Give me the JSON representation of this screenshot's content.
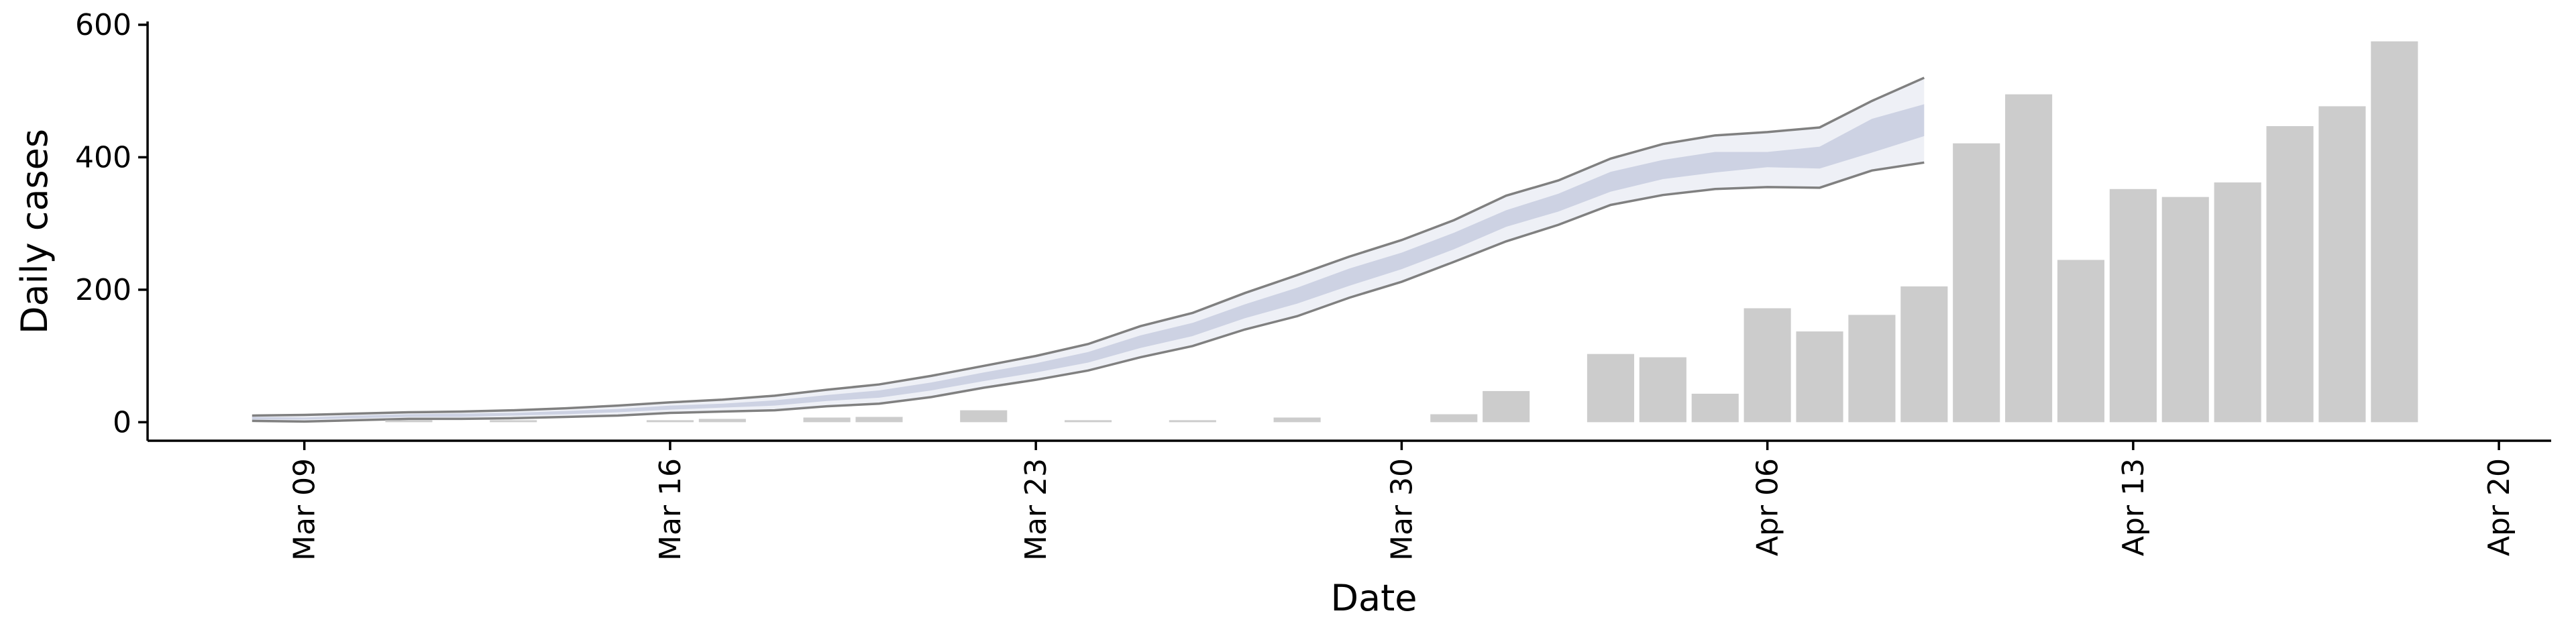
{
  "chart_data": {
    "type": "bar_band",
    "x_label": "Date",
    "y_label": "Daily cases",
    "x": [
      "Mar 08",
      "Mar 09",
      "Mar 10",
      "Mar 11",
      "Mar 12",
      "Mar 13",
      "Mar 14",
      "Mar 15",
      "Mar 16",
      "Mar 17",
      "Mar 18",
      "Mar 19",
      "Mar 20",
      "Mar 21",
      "Mar 22",
      "Mar 23",
      "Mar 24",
      "Mar 25",
      "Mar 26",
      "Mar 27",
      "Mar 28",
      "Mar 29",
      "Mar 30",
      "Mar 31",
      "Apr 01",
      "Apr 02",
      "Apr 03",
      "Apr 04",
      "Apr 05",
      "Apr 06",
      "Apr 07",
      "Apr 08",
      "Apr 09",
      "Apr 10",
      "Apr 11",
      "Apr 12",
      "Apr 13",
      "Apr 14",
      "Apr 15",
      "Apr 16",
      "Apr 17",
      "Apr 18"
    ],
    "values": [
      0,
      0,
      0,
      3,
      0,
      3,
      0,
      0,
      3,
      5,
      0,
      7,
      8,
      0,
      18,
      0,
      3,
      0,
      3,
      0,
      7,
      0,
      0,
      12,
      47,
      0,
      103,
      98,
      43,
      172,
      137,
      162,
      205,
      421,
      495,
      245,
      352,
      340,
      362,
      447,
      477,
      575
    ],
    "color": "#cccccc",
    "bands": [
      {
        "color": "#eef0f6",
        "edge_color": "#808080",
        "upper": [
          10,
          11,
          13,
          15,
          16,
          18,
          21,
          25,
          30,
          34,
          40,
          49,
          57,
          70,
          85,
          100,
          118,
          145,
          165,
          195,
          222,
          250,
          275,
          305,
          342,
          365,
          398,
          420,
          433,
          438,
          445,
          485,
          520,
          null,
          null,
          null,
          null,
          null,
          null,
          null,
          null,
          null
        ],
        "lower": [
          2,
          1,
          3,
          5,
          5,
          6,
          8,
          10,
          14,
          16,
          18,
          24,
          28,
          38,
          52,
          64,
          78,
          98,
          115,
          140,
          160,
          188,
          212,
          242,
          273,
          298,
          328,
          343,
          352,
          355,
          354,
          380,
          392,
          null,
          null,
          null,
          null,
          null,
          null,
          null,
          null,
          null
        ]
      },
      {
        "color": "#cdd2e3",
        "upper": [
          8,
          7,
          10,
          12,
          13,
          14,
          17,
          20,
          25,
          28,
          33,
          41,
          48,
          60,
          75,
          89,
          106,
          131,
          150,
          178,
          203,
          232,
          256,
          286,
          320,
          345,
          378,
          396,
          408,
          408,
          416,
          458,
          480,
          null,
          null,
          null,
          null,
          null,
          null,
          null,
          null,
          null
        ],
        "lower": [
          4,
          4,
          6,
          8,
          8,
          10,
          12,
          15,
          19,
          22,
          25,
          32,
          37,
          48,
          62,
          75,
          90,
          112,
          130,
          157,
          179,
          206,
          231,
          261,
          295,
          318,
          348,
          367,
          377,
          385,
          383,
          407,
          432,
          null,
          null,
          null,
          null,
          null,
          null,
          null,
          null,
          null
        ]
      }
    ],
    "xlim": [
      "Mar 06",
      "Apr 21"
    ],
    "xticks": [
      "Mar 09",
      "Mar 16",
      "Mar 23",
      "Mar 30",
      "Apr 06",
      "Apr 13",
      "Apr 20"
    ],
    "ylim": [
      -28,
      605
    ],
    "yticks": [
      0,
      200,
      400,
      600
    ]
  }
}
